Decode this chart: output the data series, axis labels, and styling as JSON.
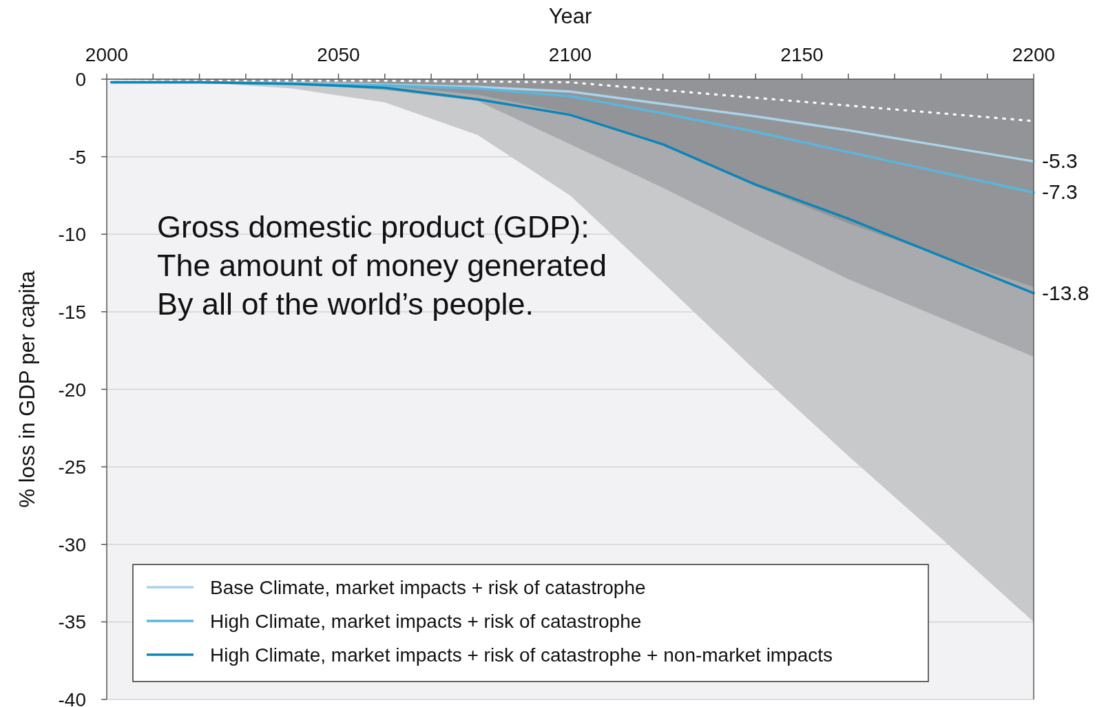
{
  "chart_data": {
    "type": "line",
    "xlabel": "Year",
    "ylabel": "% loss in GDP per capita",
    "xlim": [
      2000,
      2200
    ],
    "ylim": [
      -40,
      0
    ],
    "xticks": [
      2000,
      {
        "value": 2010,
        "label": null
      },
      {
        "value": 2020,
        "label": null
      },
      {
        "value": 2030,
        "label": null
      },
      {
        "value": 2040,
        "label": null
      },
      2050,
      {
        "value": 2060,
        "label": null
      },
      {
        "value": 2070,
        "label": null
      },
      {
        "value": 2080,
        "label": null
      },
      {
        "value": 2090,
        "label": null
      },
      2100,
      {
        "value": 2110,
        "label": null
      },
      {
        "value": 2120,
        "label": null
      },
      {
        "value": 2130,
        "label": null
      },
      {
        "value": 2140,
        "label": null
      },
      2150,
      {
        "value": 2160,
        "label": null
      },
      {
        "value": 2170,
        "label": null
      },
      {
        "value": 2180,
        "label": null
      },
      {
        "value": 2190,
        "label": null
      },
      2200
    ],
    "yticks": [
      0,
      -5,
      -10,
      -15,
      -20,
      -25,
      -30,
      -35,
      -40
    ],
    "grid": "y",
    "legend": "bottom left",
    "x": [
      2001,
      2020,
      2040,
      2060,
      2080,
      2100,
      2120,
      2140,
      2160,
      2180,
      2200
    ],
    "series": [
      {
        "type": "area",
        "color": "#c8c9cb",
        "values": [
          0,
          -0.2,
          -0.6,
          -1.5,
          -3.6,
          -7.5,
          -13.1,
          -18.8,
          -24.3,
          -29.6,
          -35
        ]
      },
      {
        "type": "area",
        "color": "#a9aaad",
        "values": [
          0,
          -0.1,
          -0.3,
          -0.7,
          -1.4,
          -4.2,
          -7.0,
          -10.0,
          -12.9,
          -15.4,
          -17.9
        ]
      },
      {
        "type": "area",
        "color": "#939498",
        "values": [
          0,
          -0.1,
          -0.2,
          -0.4,
          -1.0,
          -2.2,
          -4.3,
          -6.9,
          -9.3,
          -11.4,
          -13.4
        ]
      },
      {
        "type": "line",
        "color": "#ffffff",
        "line_style": "dotted",
        "values": [
          -0.1,
          -0.1,
          -0.1,
          -0.1,
          -0.15,
          -0.2,
          -0.7,
          -1.2,
          -1.7,
          -2.2,
          -2.7
        ]
      },
      {
        "name": "Base Climate, market impacts + risk of catastrophe",
        "color": "#a9d3ea",
        "values": [
          -0.2,
          -0.2,
          -0.25,
          -0.35,
          -0.5,
          -0.8,
          -1.6,
          -2.4,
          -3.3,
          -4.3,
          -5.3
        ],
        "value_labels": [
          null,
          null,
          null,
          null,
          null,
          null,
          null,
          null,
          null,
          null,
          "-5.3"
        ]
      },
      {
        "name": "High Climate, market impacts + risk of catastrophe",
        "color": "#5ab6dc",
        "values": [
          -0.2,
          -0.2,
          -0.3,
          -0.4,
          -0.6,
          -1.1,
          -2.2,
          -3.4,
          -4.7,
          -6.0,
          -7.3
        ],
        "value_labels": [
          null,
          null,
          null,
          null,
          null,
          null,
          null,
          null,
          null,
          null,
          "-7.3"
        ]
      },
      {
        "name": "High Climate, market impacts + risk of catastrophe + non-market impacts",
        "color": "#0a86b8",
        "values": [
          -0.2,
          -0.2,
          -0.3,
          -0.55,
          -1.3,
          -2.3,
          -4.2,
          -6.8,
          -9.0,
          -11.4,
          -13.8
        ],
        "value_labels": [
          null,
          null,
          null,
          null,
          null,
          null,
          null,
          null,
          null,
          null,
          "-13.8"
        ]
      }
    ],
    "annotations": [
      "Gross domestic product (GDP):\nThe amount of money generated\nBy all of the world’s people."
    ]
  }
}
